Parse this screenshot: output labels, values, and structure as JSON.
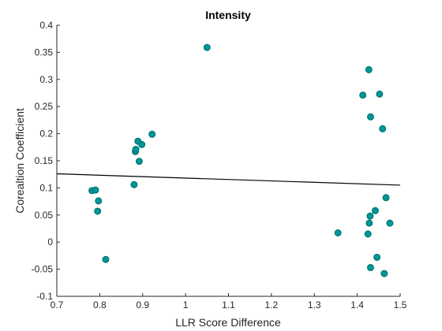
{
  "chart_data": {
    "type": "scatter",
    "title": "Intensity",
    "xlabel": "LLR Score Difference",
    "ylabel": "Corealtion Coefficient",
    "xlim": [
      0.7,
      1.5
    ],
    "ylim": [
      -0.1,
      0.4
    ],
    "x_ticks": [
      "0.7",
      "0.8",
      "0.9",
      "1",
      "1.1",
      "1.2",
      "1.3",
      "1.4",
      "1.5"
    ],
    "y_ticks": [
      "-0.1",
      "-0.05",
      "0",
      "0.05",
      "0.1",
      "0.15",
      "0.2",
      "0.25",
      "0.3",
      "0.35",
      "0.4"
    ],
    "grid": false,
    "points": {
      "x": [
        0.782,
        0.79,
        0.795,
        0.797,
        0.814,
        0.88,
        0.883,
        0.884,
        0.889,
        0.892,
        0.898,
        0.922,
        1.05,
        1.355,
        1.413,
        1.425,
        1.427,
        1.428,
        1.43,
        1.431,
        1.431,
        1.442,
        1.446,
        1.452,
        1.459,
        1.463,
        1.467,
        1.476
      ],
      "y": [
        0.095,
        0.096,
        0.057,
        0.076,
        -0.032,
        0.106,
        0.167,
        0.171,
        0.186,
        0.149,
        0.18,
        0.199,
        0.359,
        0.017,
        0.271,
        0.015,
        0.318,
        0.035,
        0.048,
        -0.047,
        0.231,
        0.058,
        -0.028,
        0.273,
        0.209,
        -0.058,
        0.082,
        0.035
      ]
    },
    "trend_line": {
      "x": [
        0.7,
        1.5
      ],
      "y": [
        0.126,
        0.105
      ]
    },
    "marker_color": "#009999",
    "marker_edge_color": "#007777",
    "line_color": "#000000"
  }
}
